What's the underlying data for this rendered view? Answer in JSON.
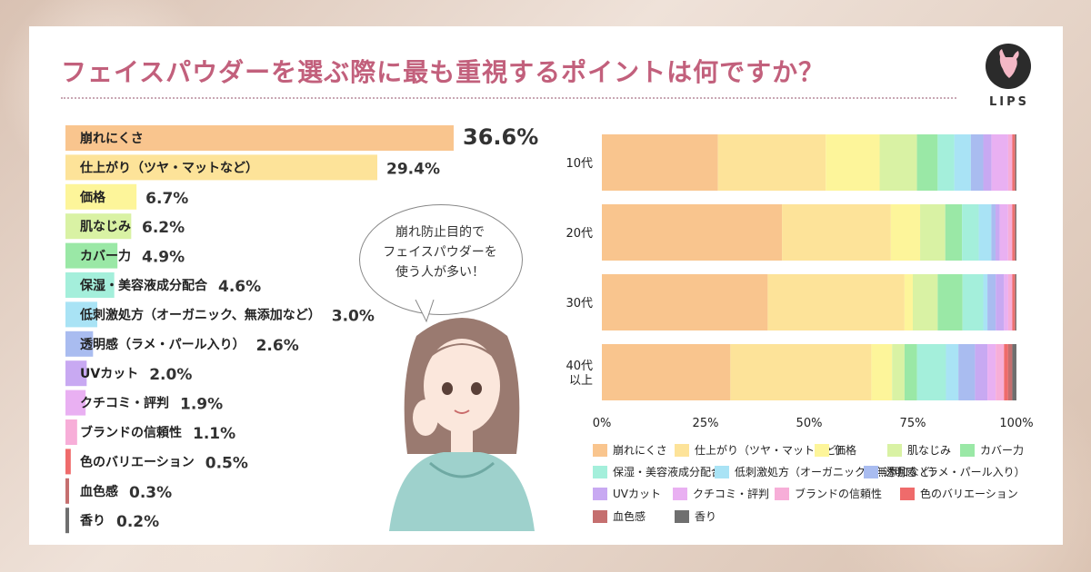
{
  "title": "フェイスパウダーを選ぶ際に最も重視するポイントは何ですか？",
  "logo_text": "LIPS",
  "bubble_lines": [
    "崩れ防止目的で",
    "フェイスパウダーを",
    "使う人が多い！"
  ],
  "chart_data": [
    {
      "type": "bar",
      "orientation": "horizontal",
      "categories": [
        "崩れにくさ",
        "仕上がり（ツヤ・マットなど）",
        "価格",
        "肌なじみ",
        "カバー力",
        "保湿・美容液成分配合",
        "低刺激処方（オーガニック、無添加など）",
        "透明感（ラメ・パール入り）",
        "UVカット",
        "クチコミ・評判",
        "ブランドの信頼性",
        "色のバリエーション",
        "血色感",
        "香り"
      ],
      "values": [
        36.6,
        29.4,
        6.7,
        6.2,
        4.9,
        4.6,
        3.0,
        2.6,
        2.0,
        1.9,
        1.1,
        0.5,
        0.3,
        0.2
      ],
      "value_labels": [
        "36.6%",
        "29.4%",
        "6.7%",
        "6.2%",
        "4.9%",
        "4.6%",
        "3.0%",
        "2.6%",
        "2.0%",
        "1.9%",
        "1.1%",
        "0.5%",
        "0.3%",
        "0.2%"
      ],
      "colors": [
        "#f9c58e",
        "#fde399",
        "#fdf59a",
        "#d9f2a4",
        "#9ae8a6",
        "#a4efdb",
        "#a9e3f5",
        "#a9bcf0",
        "#c8a9f2",
        "#e9b0f2",
        "#f7aed8",
        "#ef6b6b",
        "#c56f6f",
        "#6f6f6f"
      ]
    },
    {
      "type": "bar",
      "orientation": "horizontal",
      "stacked": true,
      "categories": [
        "10代",
        "20代",
        "30代",
        "40代以上"
      ],
      "category_display": [
        [
          "10代"
        ],
        [
          "20代"
        ],
        [
          "30代"
        ],
        [
          "40代",
          "以上"
        ]
      ],
      "xticks": [
        "0%",
        "25%",
        "50%",
        "75%",
        "100%"
      ],
      "xlim": [
        0,
        100
      ],
      "series": [
        {
          "name": "崩れにくさ",
          "color": "#f9c58e",
          "values": [
            28,
            43,
            40,
            31
          ]
        },
        {
          "name": "仕上がり（ツヤ・マットなど）",
          "color": "#fde399",
          "values": [
            26,
            26,
            33,
            34
          ]
        },
        {
          "name": "価格",
          "color": "#fdf59a",
          "values": [
            13,
            7,
            2,
            5
          ]
        },
        {
          "name": "肌なじみ",
          "color": "#d9f2a4",
          "values": [
            9,
            6,
            6,
            3
          ]
        },
        {
          "name": "カバー力",
          "color": "#9ae8a6",
          "values": [
            5,
            4,
            6,
            3
          ]
        },
        {
          "name": "保湿・美容液成分配合",
          "color": "#a4efdb",
          "values": [
            4,
            4,
            5,
            7
          ]
        },
        {
          "name": "低刺激処方（オーガニック、無添加など）",
          "color": "#a9e3f5",
          "values": [
            4,
            3,
            1,
            3
          ]
        },
        {
          "name": "透明感（ラメ・パール入り）",
          "color": "#a9bcf0",
          "values": [
            3,
            1,
            2,
            4
          ]
        },
        {
          "name": "UVカット",
          "color": "#c8a9f2",
          "values": [
            2,
            1,
            2,
            3
          ]
        },
        {
          "name": "クチコミ・評判",
          "color": "#e9b0f2",
          "values": [
            4,
            2,
            1,
            2
          ]
        },
        {
          "name": "ブランドの信頼性",
          "color": "#f7aed8",
          "values": [
            1,
            1,
            1,
            2
          ]
        },
        {
          "name": "色のバリエーション",
          "color": "#ef6b6b",
          "values": [
            0.5,
            0.5,
            0.5,
            1
          ]
        },
        {
          "name": "血色感",
          "color": "#c56f6f",
          "values": [
            0.3,
            0.3,
            0.3,
            1
          ]
        },
        {
          "name": "香り",
          "color": "#6f6f6f",
          "values": [
            0.2,
            0.2,
            0.2,
            1
          ]
        }
      ],
      "legend_labels": [
        "崩れにくさ",
        "仕上がり（ツヤ・マットなど）",
        "価格",
        "肌なじみ",
        "カバー力",
        "保湿・美容液成分配合",
        "低刺激処方（オーガニック、無添加など）",
        "透明感（ラメ・パール入り）",
        "UVカット",
        "クチコミ・評判",
        "ブランドの信頼性",
        "色のバリエーション",
        "血色感",
        "香り"
      ],
      "legend_placement": "bottom"
    }
  ]
}
